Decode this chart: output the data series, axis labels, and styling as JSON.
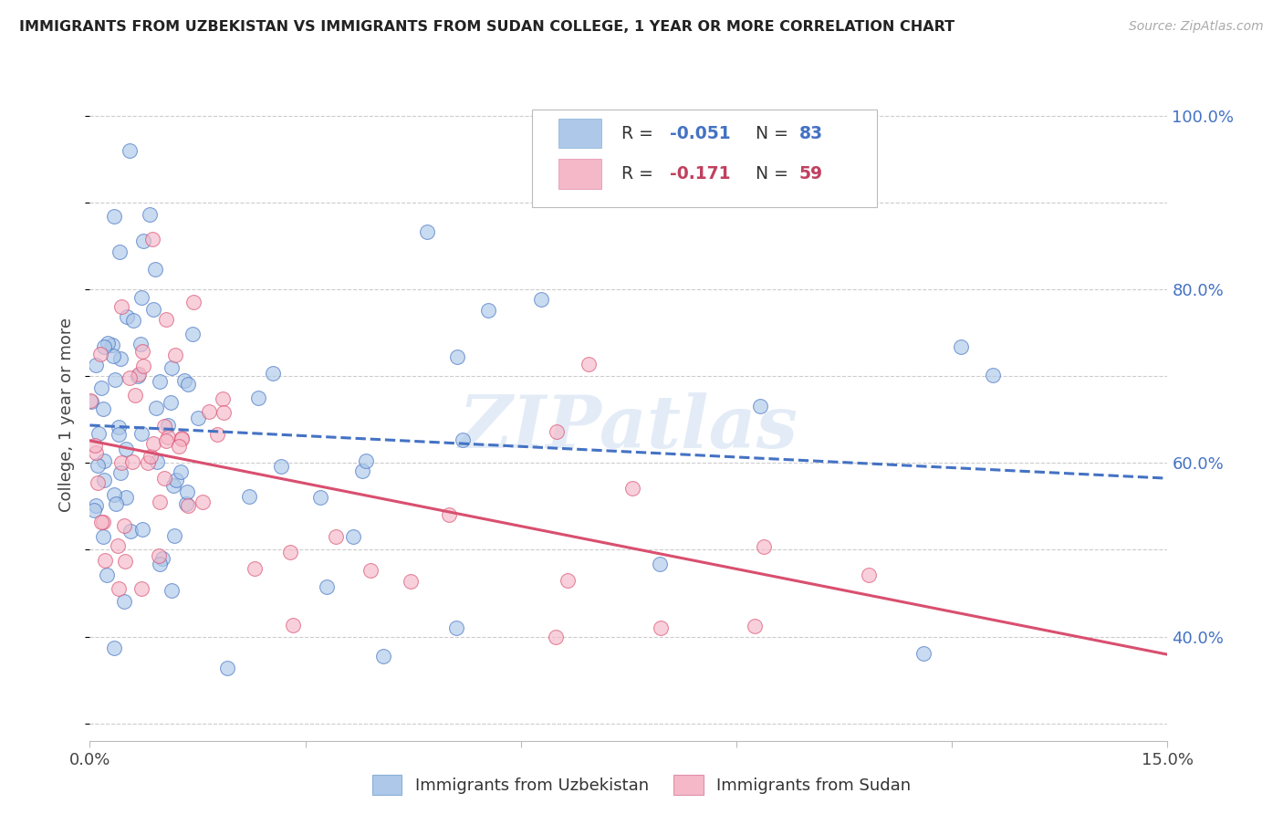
{
  "title": "IMMIGRANTS FROM UZBEKISTAN VS IMMIGRANTS FROM SUDAN COLLEGE, 1 YEAR OR MORE CORRELATION CHART",
  "source": "Source: ZipAtlas.com",
  "ylabel": "College, 1 year or more",
  "legend_label1": "Immigrants from Uzbekistan",
  "legend_label2": "Immigrants from Sudan",
  "R1": -0.051,
  "N1": 83,
  "R2": -0.171,
  "N2": 59,
  "color1": "#adc8e8",
  "color2": "#f5b8c8",
  "trendline1_color": "#4472c4",
  "trendline2_color": "#d94f6f",
  "watermark": "ZIPatlas",
  "xmin": 0.0,
  "xmax": 0.15,
  "ymin": 0.28,
  "ymax": 1.03,
  "ytick_vals_right": [
    0.4,
    0.6,
    0.8,
    1.0
  ],
  "ytick_labels_right": [
    "40.0%",
    "60.0%",
    "80.0%",
    "100.0%"
  ],
  "grid_color": "#cccccc",
  "background_color": "#ffffff",
  "right_axis_color": "#4472c4",
  "legend_text_color1": "#4472c4",
  "legend_text_color2": "#c04060"
}
